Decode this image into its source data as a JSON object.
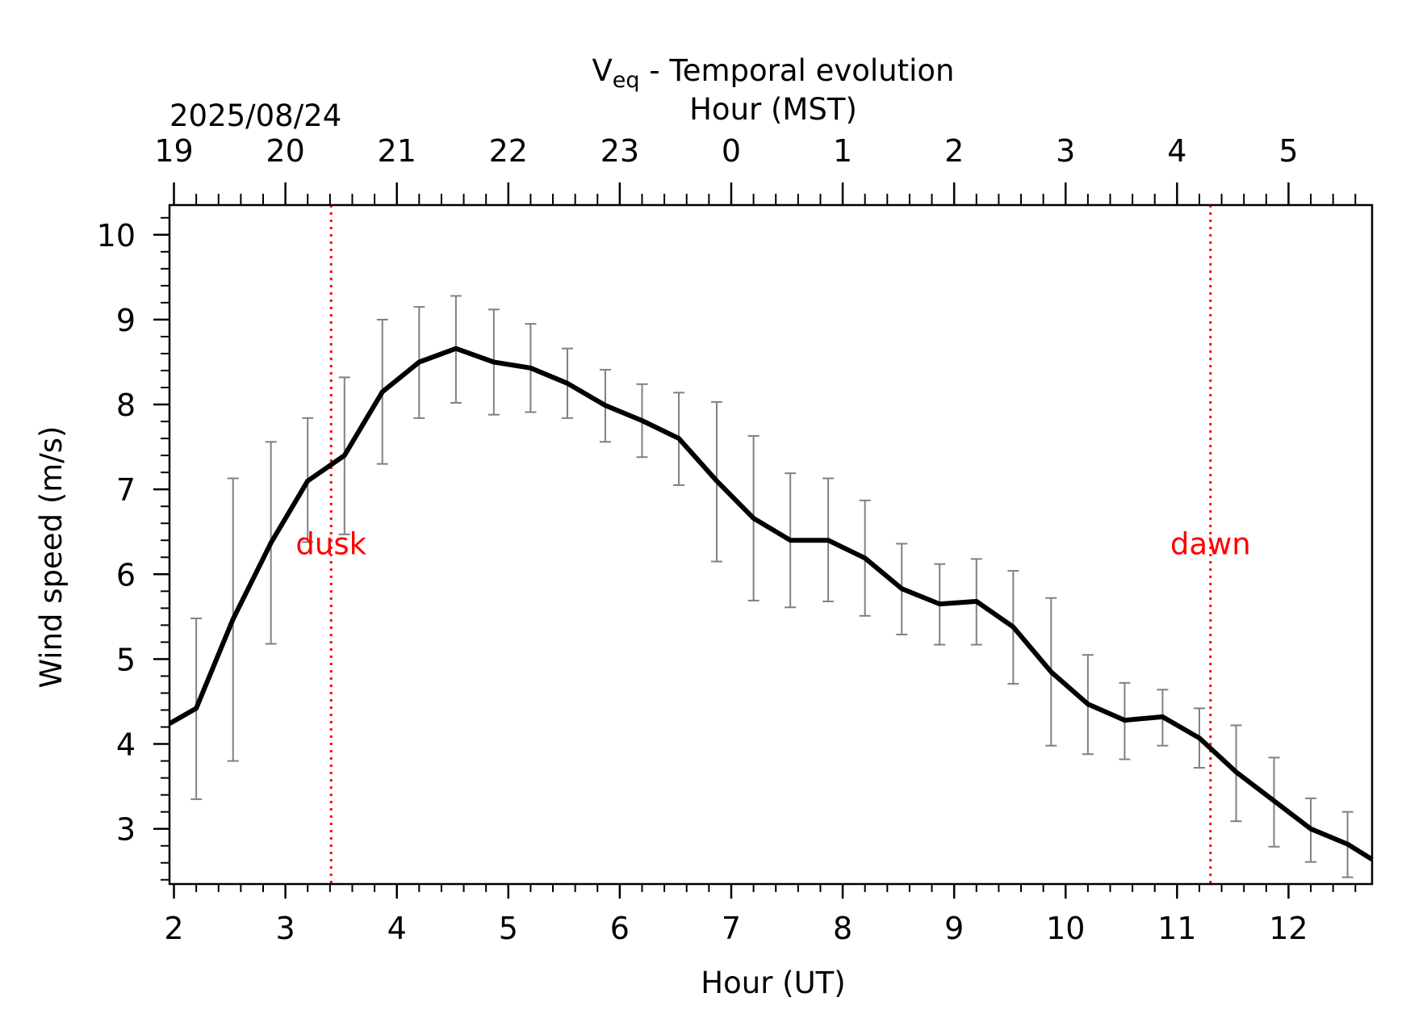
{
  "chart_data": {
    "type": "line",
    "title_main": "V",
    "title_sub": "eq",
    "title_rest": " - Temporal evolution",
    "date_label": "2025/08/24",
    "xlabel": "Hour (UT)",
    "xlabel_top": "Hour (MST)",
    "ylabel": "Wind speed (m/s)",
    "xlim": [
      1.96,
      12.75
    ],
    "ylim": [
      2.35,
      10.35
    ],
    "x_ticks": [
      2,
      3,
      4,
      5,
      6,
      7,
      8,
      9,
      10,
      11,
      12
    ],
    "x_tick_labels": [
      "2",
      "3",
      "4",
      "5",
      "6",
      "7",
      "8",
      "9",
      "10",
      "11",
      "12"
    ],
    "x_top_ticks": [
      2,
      3,
      4,
      5,
      6,
      7,
      8,
      9,
      10,
      11,
      12
    ],
    "x_top_tick_labels": [
      "19",
      "20",
      "21",
      "22",
      "23",
      "0",
      "1",
      "2",
      "3",
      "4",
      "5"
    ],
    "y_ticks": [
      3,
      4,
      5,
      6,
      7,
      8,
      9,
      10
    ],
    "y_tick_labels": [
      "3",
      "4",
      "5",
      "6",
      "7",
      "8",
      "9",
      "10"
    ],
    "grid": false,
    "series": [
      {
        "color": "#000000",
        "x": [
          1.96,
          2.2,
          2.53,
          2.87,
          3.2,
          3.53,
          3.87,
          4.2,
          4.53,
          4.87,
          5.2,
          5.53,
          5.87,
          6.2,
          6.53,
          6.87,
          7.2,
          7.53,
          7.87,
          8.2,
          8.53,
          8.87,
          9.2,
          9.53,
          9.87,
          10.2,
          10.53,
          10.87,
          11.2,
          11.53,
          11.87,
          12.2,
          12.53,
          12.75
        ],
        "y": [
          4.24,
          4.42,
          5.47,
          6.37,
          7.1,
          7.4,
          8.15,
          8.5,
          8.66,
          8.5,
          8.43,
          8.25,
          7.99,
          7.81,
          7.6,
          7.1,
          6.66,
          6.4,
          6.4,
          6.19,
          5.83,
          5.65,
          5.68,
          5.38,
          4.85,
          4.47,
          4.28,
          4.32,
          4.07,
          3.67,
          3.33,
          3.0,
          2.82,
          2.64
        ]
      }
    ],
    "error_bars": {
      "color": "#808080",
      "x": [
        2.2,
        2.53,
        2.87,
        3.2,
        3.53,
        3.87,
        4.2,
        4.53,
        4.87,
        5.2,
        5.53,
        5.87,
        6.2,
        6.53,
        6.87,
        7.2,
        7.53,
        7.87,
        8.2,
        8.53,
        8.87,
        9.2,
        9.53,
        9.87,
        10.2,
        10.53,
        10.87,
        11.2,
        11.53,
        11.87,
        12.2,
        12.53
      ],
      "low": [
        3.35,
        3.8,
        5.18,
        6.38,
        6.47,
        7.3,
        7.84,
        8.02,
        7.88,
        7.91,
        7.84,
        7.56,
        7.38,
        7.05,
        6.15,
        5.69,
        5.61,
        5.68,
        5.51,
        5.29,
        5.17,
        5.17,
        4.71,
        3.98,
        3.88,
        3.82,
        3.98,
        3.72,
        3.09,
        2.79,
        2.61,
        2.43
      ],
      "high": [
        5.48,
        7.13,
        7.56,
        7.84,
        8.32,
        9.0,
        9.15,
        9.28,
        9.12,
        8.95,
        8.66,
        8.41,
        8.24,
        8.14,
        8.03,
        7.63,
        7.19,
        7.13,
        6.87,
        6.36,
        6.12,
        6.18,
        6.04,
        5.72,
        5.05,
        4.72,
        4.64,
        4.42,
        4.22,
        3.84,
        3.36,
        3.2
      ]
    },
    "vlines": [
      {
        "x": 3.41,
        "label": "dusk",
        "color": "#ff0000",
        "label_y": 6.35
      },
      {
        "x": 11.3,
        "label": "dawn",
        "color": "#ff0000",
        "label_y": 6.35
      }
    ]
  }
}
